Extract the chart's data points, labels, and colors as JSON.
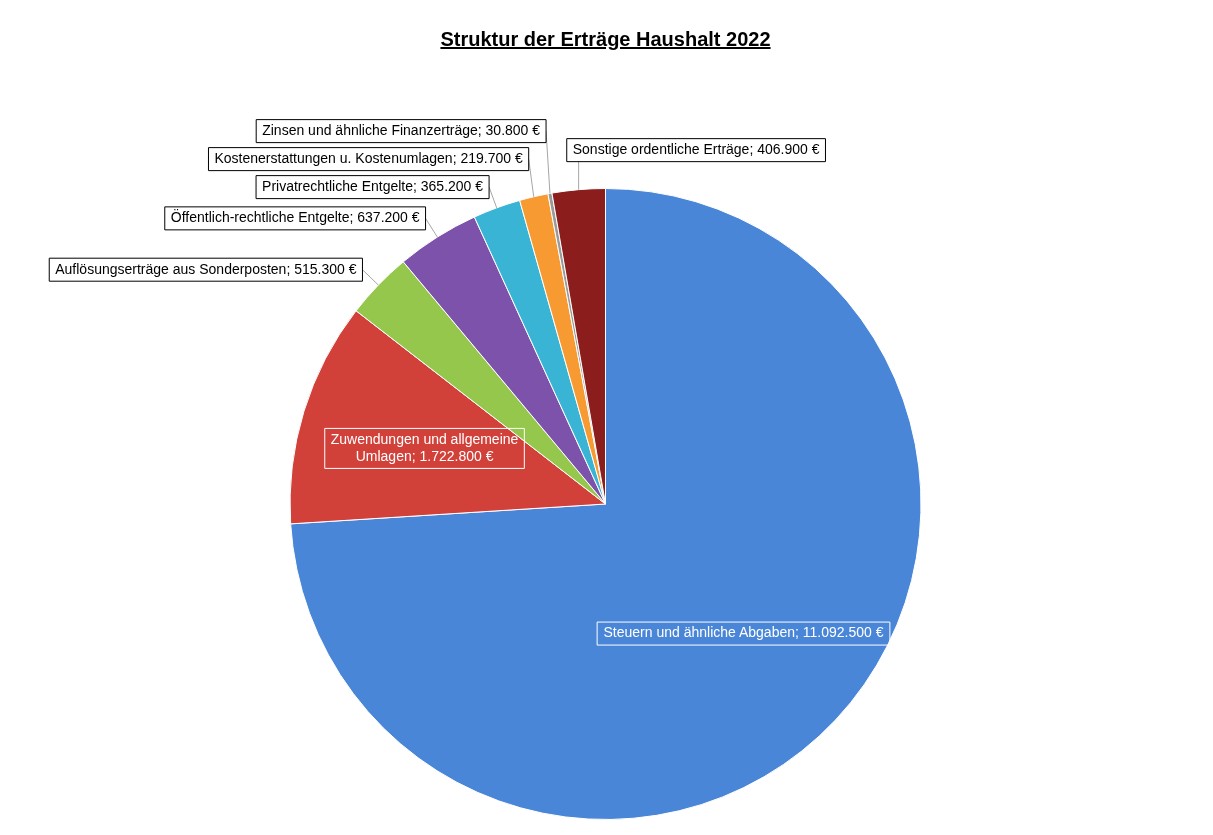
{
  "chart_data": {
    "type": "pie",
    "title": "Struktur der Erträge Haushalt 2022",
    "categories": [
      "Steuern und ähnliche Abgaben",
      "Zuwendungen und allgemeine Umlagen",
      "Auflösungserträge aus Sonderposten",
      "Öffentlich-rechtliche Entgelte",
      "Privatrechtliche Entgelte",
      "Kostenerstattungen u. Kostenumlagen",
      "Zinsen und ähnliche Finanzerträge",
      "Sonstige ordentliche Erträge"
    ],
    "values": [
      11092500,
      1722800,
      515300,
      637200,
      365200,
      219700,
      30800,
      406900
    ],
    "value_labels": [
      "11.092.500 €",
      "1.722.800 €",
      "515.300 €",
      "637.200 €",
      "365.200 €",
      "219.700 €",
      "30.800 €",
      "406.900 €"
    ],
    "colors": [
      "#4a86d8",
      "#d2403a",
      "#94c74c",
      "#7d52ab",
      "#3ab4d4",
      "#f79a32",
      "#9a9a9a",
      "#8c1d1d"
    ],
    "legend": false
  }
}
